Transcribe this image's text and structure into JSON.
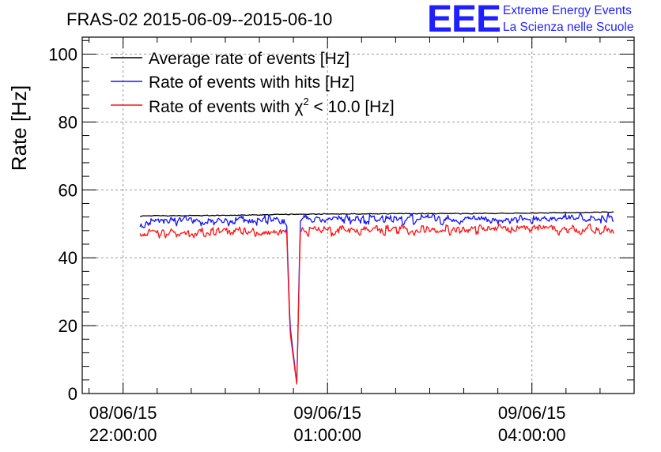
{
  "chart_data": {
    "type": "line",
    "title": "FRAS-02 2015-06-09--2015-06-10",
    "xlabel": "",
    "ylabel": "Rate [Hz]",
    "ylim": [
      0,
      105
    ],
    "yticks": [
      0,
      20,
      40,
      60,
      80,
      100
    ],
    "xlim_hours": [
      -0.6,
      7.5
    ],
    "xticks": [
      {
        "hours": 0,
        "line1": "08/06/15",
        "line2": "22:00:00"
      },
      {
        "hours": 3,
        "line1": "09/06/15",
        "line2": "01:00:00"
      },
      {
        "hours": 6,
        "line1": "09/06/15",
        "line2": "04:00:00"
      }
    ],
    "x_hours": [
      0.25,
      0.5,
      1.0,
      1.5,
      2.0,
      2.4,
      2.45,
      2.55,
      2.6,
      2.65,
      3.0,
      3.5,
      4.0,
      4.5,
      5.0,
      5.5,
      6.0,
      6.5,
      7.0,
      7.2
    ],
    "series": [
      {
        "name": "Average rate of events [Hz]",
        "color": "#000000",
        "values": [
          52.3,
          52.4,
          52.4,
          52.5,
          52.6,
          52.8,
          52.8,
          52.8,
          52.8,
          52.8,
          52.9,
          52.9,
          53.0,
          53.0,
          53.0,
          53.1,
          53.2,
          53.3,
          53.4,
          53.5
        ]
      },
      {
        "name": "Rate of events with hits [Hz]",
        "color": "#1414ff",
        "values": [
          50.4,
          50.6,
          50.8,
          51.0,
          51.0,
          50.9,
          20.0,
          2.8,
          51.0,
          51.1,
          51.1,
          51.2,
          51.2,
          51.3,
          51.3,
          51.4,
          51.5,
          51.5,
          51.6,
          51.6
        ]
      },
      {
        "name": "Rate of events with χ² < 10.0 [Hz]",
        "color": "#ff1414",
        "values": [
          47.1,
          47.3,
          47.5,
          47.7,
          47.8,
          47.6,
          18.0,
          2.6,
          47.8,
          47.9,
          47.9,
          48.0,
          48.1,
          48.1,
          48.2,
          48.2,
          48.3,
          48.3,
          48.2,
          48.0
        ]
      }
    ],
    "legend_labels": {
      "avg": "Average rate of events [Hz]",
      "hits": "Rate of events with hits [Hz]",
      "chi_prefix": "Rate of events with ",
      "chi_symbol": "χ",
      "chi_exp": "2",
      "chi_suffix": " < 10.0 [Hz]"
    },
    "grid": true,
    "legend_position": "top-left"
  },
  "logo": {
    "mark": "EEE",
    "line1": "Extreme Energy Events",
    "line2": "La Scienza nelle Scuole"
  }
}
